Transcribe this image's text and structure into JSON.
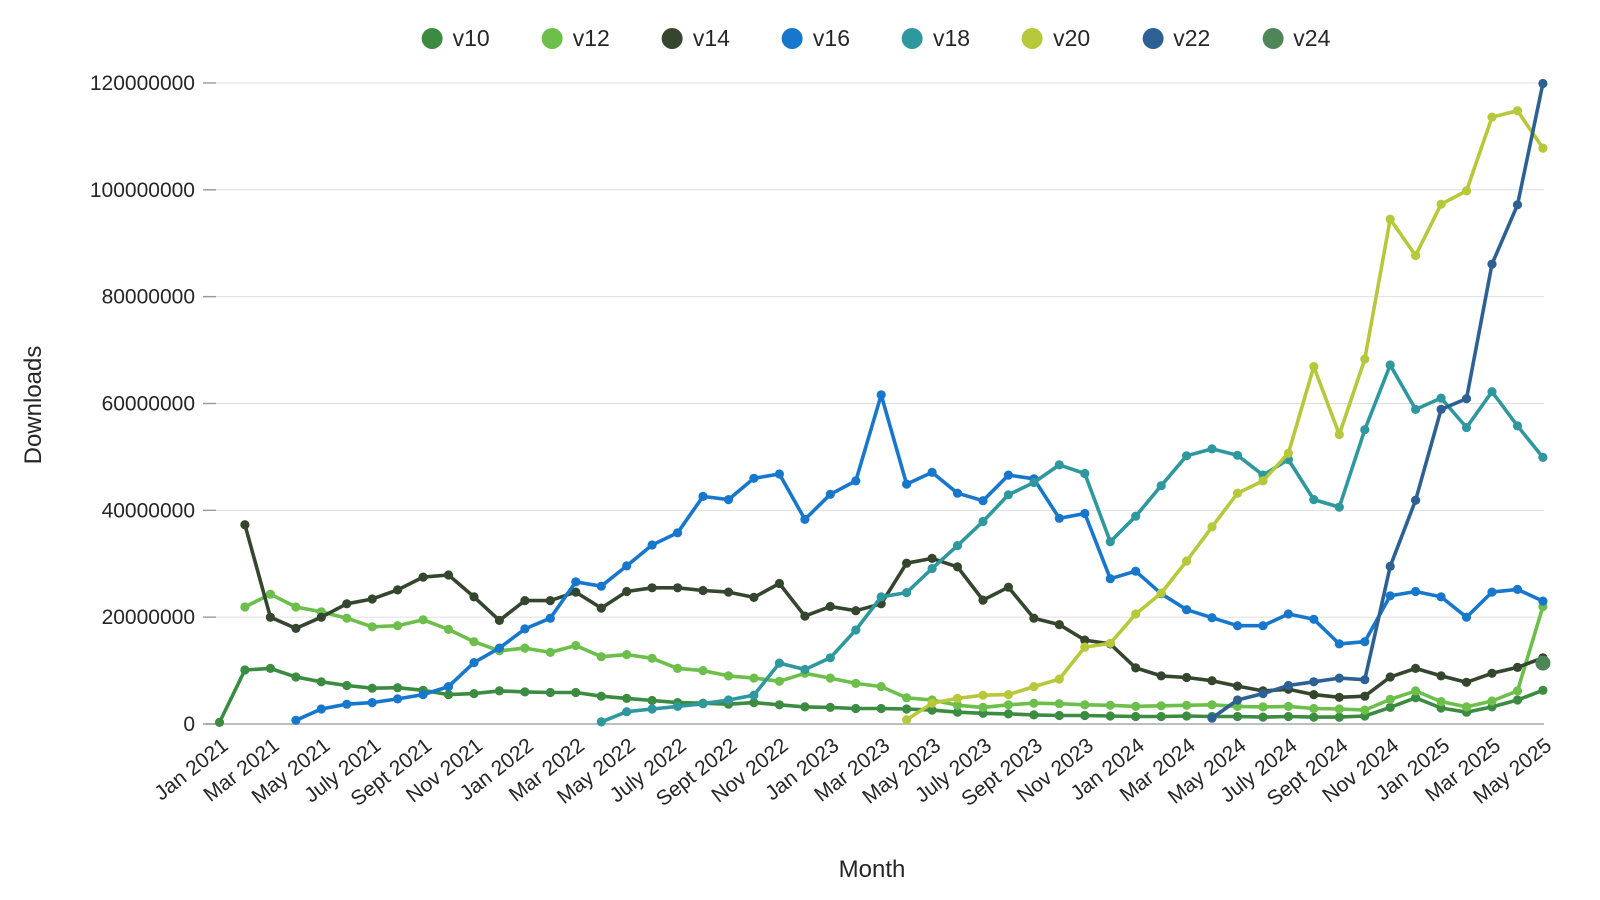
{
  "chart_data": {
    "type": "line",
    "title": "",
    "xlabel": "Month",
    "ylabel": "Downloads",
    "legend_position": "top",
    "grid": "horizontal",
    "ylim": [
      0,
      124000000
    ],
    "y_ticks": [
      0,
      20000000,
      40000000,
      60000000,
      80000000,
      100000000,
      120000000
    ],
    "x_tick_labels": [
      "Jan 2021",
      "Mar 2021",
      "May 2021",
      "July 2021",
      "Sept 2021",
      "Nov 2021",
      "Jan 2022",
      "Mar 2022",
      "May 2022",
      "July 2022",
      "Sept 2022",
      "Nov 2022",
      "Jan 2023",
      "Mar 2023",
      "May 2023",
      "July 2023",
      "Sept 2023",
      "Nov 2023",
      "Jan 2024",
      "Mar 2024",
      "May 2024",
      "July 2024",
      "Sept 2024",
      "Nov 2024",
      "Jan 2025",
      "Mar 2025",
      "May 2025"
    ],
    "months": [
      "Jan 2021",
      "Feb 2021",
      "Mar 2021",
      "Apr 2021",
      "May 2021",
      "June 2021",
      "July 2021",
      "Aug 2021",
      "Sept 2021",
      "Oct 2021",
      "Nov 2021",
      "Dec 2021",
      "Jan 2022",
      "Feb 2022",
      "Mar 2022",
      "Apr 2022",
      "May 2022",
      "June 2022",
      "July 2022",
      "Aug 2022",
      "Sept 2022",
      "Oct 2022",
      "Nov 2022",
      "Dec 2022",
      "Jan 2023",
      "Feb 2023",
      "Mar 2023",
      "Apr 2023",
      "May 2023",
      "June 2023",
      "July 2023",
      "Aug 2023",
      "Sept 2023",
      "Oct 2023",
      "Nov 2023",
      "Dec 2023",
      "Jan 2024",
      "Feb 2024",
      "Mar 2024",
      "Apr 2024",
      "May 2024",
      "June 2024",
      "July 2024",
      "Aug 2024",
      "Sept 2024",
      "Oct 2024",
      "Nov 2024",
      "Dec 2024",
      "Jan 2025",
      "Feb 2025",
      "Mar 2025",
      "Apr 2025",
      "May 2025"
    ],
    "values_unit": "millions of downloads",
    "series": [
      {
        "name": "v10",
        "color": "#3b8c40",
        "values": [
          0.3,
          10.1,
          10.4,
          8.8,
          7.9,
          7.2,
          6.7,
          6.8,
          6.3,
          5.5,
          5.7,
          6.2,
          6.0,
          5.9,
          5.9,
          5.2,
          4.8,
          4.4,
          4.0,
          3.9,
          3.7,
          4.0,
          3.6,
          3.2,
          3.1,
          2.9,
          2.9,
          2.8,
          2.6,
          2.2,
          2.0,
          1.9,
          1.7,
          1.6,
          1.6,
          1.5,
          1.4,
          1.4,
          1.5,
          1.4,
          1.4,
          1.3,
          1.4,
          1.3,
          1.3,
          1.5,
          3.1,
          4.9,
          3.0,
          2.2,
          3.2,
          4.5,
          6.3
        ]
      },
      {
        "name": "v12",
        "color": "#6cbf4b",
        "values": [
          null,
          21.9,
          24.3,
          21.9,
          21.0,
          19.8,
          18.2,
          18.4,
          19.5,
          17.7,
          15.4,
          13.7,
          14.2,
          13.4,
          14.7,
          12.6,
          13.0,
          12.3,
          10.4,
          10.0,
          9.0,
          8.6,
          8.0,
          9.5,
          8.6,
          7.6,
          7.0,
          4.9,
          4.5,
          3.5,
          3.1,
          3.6,
          3.9,
          3.8,
          3.6,
          3.5,
          3.3,
          3.4,
          3.5,
          3.6,
          3.3,
          3.2,
          3.3,
          2.9,
          2.8,
          2.6,
          4.6,
          6.2,
          4.2,
          3.2,
          4.3,
          6.2,
          22.0
        ]
      },
      {
        "name": "v14",
        "color": "#35462f",
        "values": [
          null,
          37.3,
          20.0,
          17.9,
          20.0,
          22.5,
          23.4,
          25.1,
          27.5,
          27.9,
          23.8,
          19.4,
          23.1,
          23.1,
          24.7,
          21.7,
          24.8,
          25.5,
          25.5,
          25.0,
          24.7,
          23.7,
          26.3,
          20.2,
          22.0,
          21.2,
          22.5,
          30.1,
          31.0,
          29.4,
          23.2,
          25.6,
          19.8,
          18.6,
          15.7,
          15.0,
          10.5,
          9.0,
          8.7,
          8.1,
          7.1,
          6.2,
          6.5,
          5.5,
          5.0,
          5.2,
          8.8,
          10.4,
          9.0,
          7.8,
          9.5,
          10.6,
          12.4
        ]
      },
      {
        "name": "v16",
        "color": "#1777cd",
        "values": [
          null,
          null,
          null,
          0.7,
          2.8,
          3.7,
          4.0,
          4.7,
          5.5,
          7.0,
          11.5,
          14.2,
          17.8,
          19.8,
          26.6,
          25.8,
          29.6,
          33.5,
          35.8,
          42.6,
          42.0,
          46.0,
          46.8,
          38.3,
          43.0,
          45.5,
          61.6,
          44.9,
          47.1,
          43.2,
          41.8,
          46.6,
          45.9,
          38.5,
          39.4,
          27.2,
          28.6,
          24.4,
          21.4,
          19.9,
          18.4,
          18.4,
          20.6,
          19.6,
          15.0,
          15.4,
          24.0,
          24.8,
          23.8,
          20.0,
          24.7,
          25.2,
          23.0
        ]
      },
      {
        "name": "v18",
        "color": "#2f989e",
        "values": [
          null,
          null,
          null,
          null,
          null,
          null,
          null,
          null,
          null,
          null,
          null,
          null,
          null,
          null,
          null,
          0.4,
          2.3,
          2.8,
          3.3,
          3.8,
          4.5,
          5.4,
          11.4,
          10.2,
          12.4,
          17.6,
          23.8,
          24.6,
          29.1,
          33.4,
          37.9,
          42.9,
          45.2,
          48.5,
          46.9,
          34.1,
          38.9,
          44.6,
          50.2,
          51.5,
          50.3,
          46.6,
          49.5,
          42.0,
          40.6,
          55.1,
          67.2,
          58.9,
          61.0,
          55.5,
          62.2,
          55.8,
          49.9
        ]
      },
      {
        "name": "v20",
        "color": "#b7c93b",
        "values": [
          null,
          null,
          null,
          null,
          null,
          null,
          null,
          null,
          null,
          null,
          null,
          null,
          null,
          null,
          null,
          null,
          null,
          null,
          null,
          null,
          null,
          null,
          null,
          null,
          null,
          null,
          null,
          0.8,
          3.9,
          4.8,
          5.4,
          5.5,
          7.0,
          8.4,
          14.4,
          15.1,
          20.6,
          24.5,
          30.5,
          36.9,
          43.2,
          45.5,
          50.7,
          66.9,
          54.2,
          68.3,
          94.5,
          87.7,
          97.3,
          99.8,
          113.6,
          114.8,
          107.8
        ]
      },
      {
        "name": "v22",
        "color": "#2e6193",
        "values": [
          null,
          null,
          null,
          null,
          null,
          null,
          null,
          null,
          null,
          null,
          null,
          null,
          null,
          null,
          null,
          null,
          null,
          null,
          null,
          null,
          null,
          null,
          null,
          null,
          null,
          null,
          null,
          null,
          null,
          null,
          null,
          null,
          null,
          null,
          null,
          null,
          null,
          null,
          null,
          1.1,
          4.5,
          5.7,
          7.2,
          7.9,
          8.6,
          8.3,
          29.5,
          41.9,
          58.9,
          60.9,
          86.1,
          97.2,
          119.9
        ]
      },
      {
        "name": "v24",
        "color": "#4e8757",
        "values": [
          null,
          null,
          null,
          null,
          null,
          null,
          null,
          null,
          null,
          null,
          null,
          null,
          null,
          null,
          null,
          null,
          null,
          null,
          null,
          null,
          null,
          null,
          null,
          null,
          null,
          null,
          null,
          null,
          null,
          null,
          null,
          null,
          null,
          null,
          null,
          null,
          null,
          null,
          null,
          null,
          null,
          null,
          null,
          null,
          null,
          null,
          null,
          null,
          null,
          null,
          null,
          null,
          11.4
        ]
      }
    ]
  },
  "axes": {
    "x_title": "Month",
    "y_title": "Downloads"
  }
}
